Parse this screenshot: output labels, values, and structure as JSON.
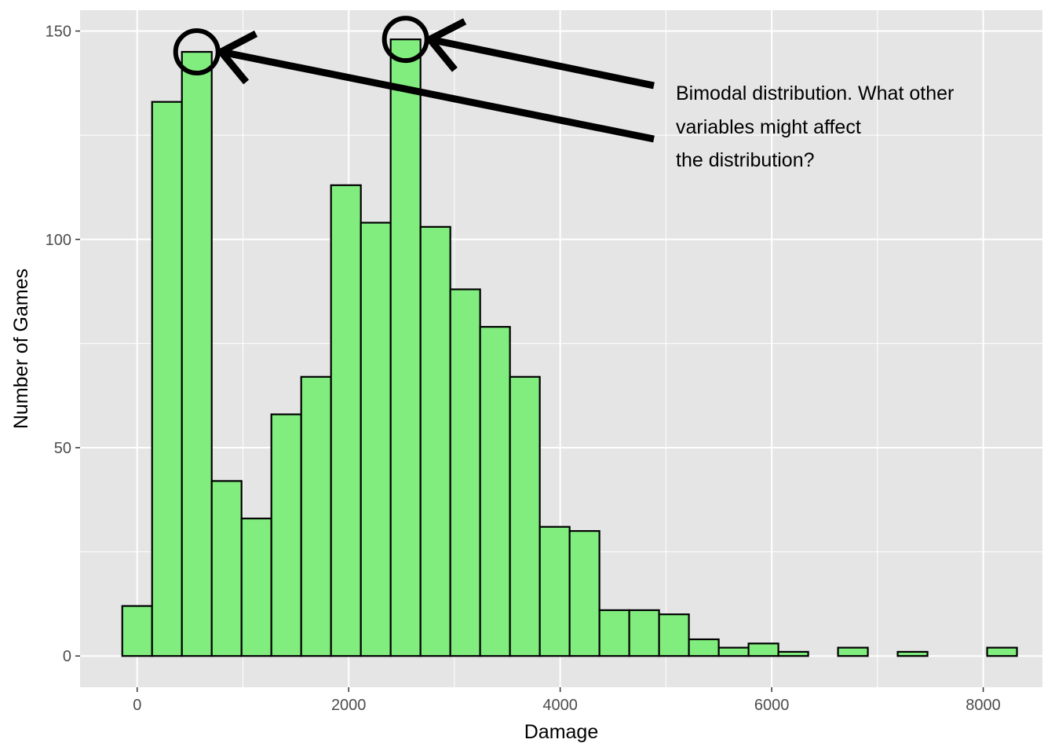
{
  "chart_data": {
    "type": "bar",
    "subtype": "histogram",
    "title": "",
    "xlabel": "Damage",
    "ylabel": "Number of Games",
    "xlim": [
      -540,
      8560
    ],
    "ylim": [
      -7.5,
      155
    ],
    "x_ticks": [
      0,
      2000,
      4000,
      6000,
      8000
    ],
    "x_tick_labels": [
      "0",
      "2000",
      "4000",
      "6000",
      "8000"
    ],
    "y_ticks": [
      0,
      50,
      100,
      150
    ],
    "y_tick_labels": [
      "0",
      "50",
      "100",
      "150"
    ],
    "bin_width": 282,
    "bin_start": -141,
    "counts": [
      12,
      133,
      145,
      42,
      33,
      58,
      67,
      113,
      104,
      148,
      103,
      88,
      79,
      67,
      31,
      30,
      11,
      11,
      10,
      4,
      2,
      3,
      1,
      0,
      2,
      0,
      1,
      0,
      0,
      2
    ],
    "grid": true,
    "legend": "none",
    "colors": {
      "panel": "#e5e5e5",
      "grid": "#ffffff",
      "bar_fill": "#80ed7e",
      "bar_stroke": "#000000"
    },
    "annotation": {
      "lines": [
        "Bimodal distribution. What other",
        "variables might affect",
        "the distribution?"
      ],
      "targets": [
        {
          "x": 564,
          "y": 145
        },
        {
          "x": 2538,
          "y": 148
        }
      ]
    }
  }
}
